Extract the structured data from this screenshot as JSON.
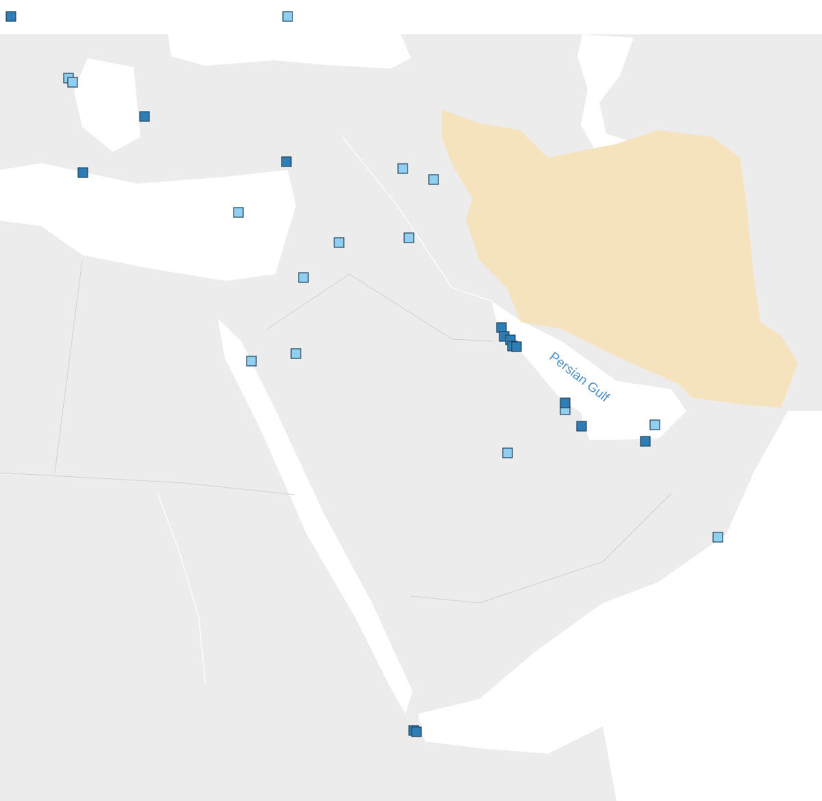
{
  "map": {
    "labels": {
      "water": "Persian Gulf"
    }
  }
}
